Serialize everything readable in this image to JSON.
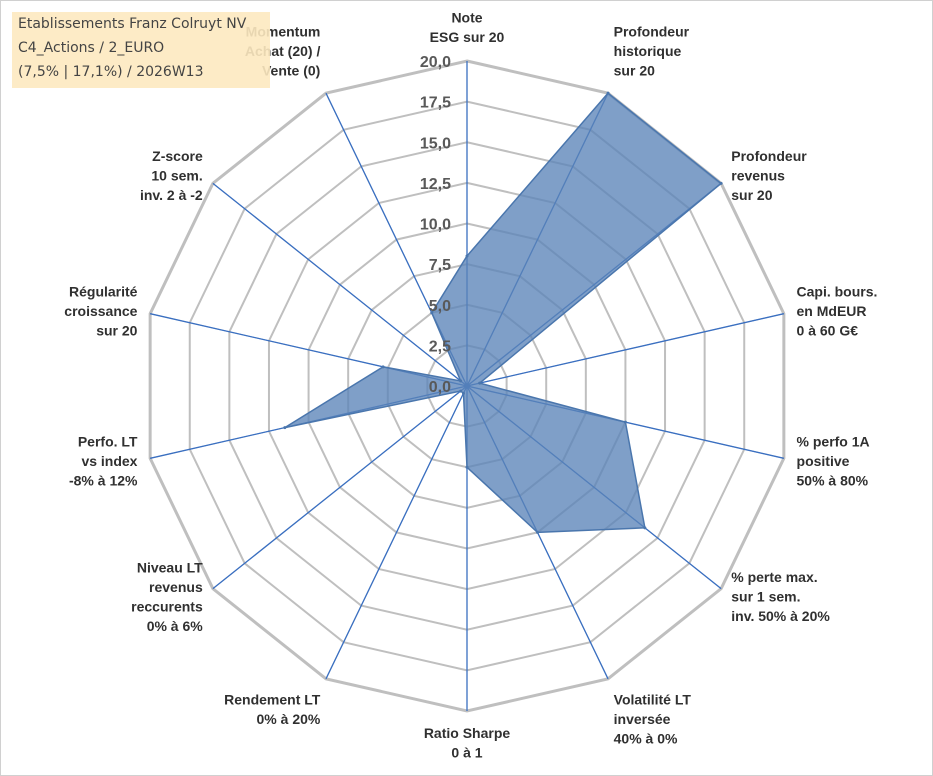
{
  "title_box": {
    "line1": "Etablissements Franz Colruyt NV",
    "line2": "C4_Actions / 2_EURO",
    "line3": "(7,5% | 17,1%) / 2026W13"
  },
  "chart_data": {
    "type": "radar",
    "rmin": 0,
    "rmax": 20,
    "ticks": [
      "0,0",
      "2,5",
      "5,0",
      "7,5",
      "10,0",
      "12,5",
      "15,0",
      "17,5",
      "20,0"
    ],
    "grid": true,
    "axes": [
      [
        "Note",
        "ESG sur 20"
      ],
      [
        "Profondeur",
        "historique",
        "sur 20"
      ],
      [
        "Profondeur",
        "revenus",
        "sur 20"
      ],
      [
        "Capi. bours.",
        "en MdEUR",
        "0 à 60 G€"
      ],
      [
        "% perfo 1A",
        "positive",
        "50% à 80%"
      ],
      [
        "% perte max.",
        "sur 1 sem.",
        "inv. 50% à 20%"
      ],
      [
        "Volatilité LT",
        "inversée",
        "40% à 0%"
      ],
      [
        "Ratio Sharpe",
        "0 à 1"
      ],
      [
        "Rendement LT",
        "0% à 20%"
      ],
      [
        "Niveau LT",
        "revenus",
        "reccurents",
        "0% à 6%"
      ],
      [
        "Perfo. LT",
        "vs index",
        "-8% à 12%"
      ],
      [
        "Régularité",
        "croissance",
        "sur 20"
      ],
      [
        "Z-score",
        "10 sem.",
        "inv. 2 à -2"
      ],
      [
        "Momentum",
        "Achat (20) /",
        "Vente (0)"
      ]
    ],
    "series": [
      {
        "values": [
          8.0,
          20.0,
          20.0,
          0.8,
          10.0,
          14.0,
          10.0,
          5.0,
          0.5,
          0.5,
          11.5,
          5.3,
          0.5,
          5.0
        ],
        "color": "#4a76ad"
      }
    ],
    "colors": {
      "fill": "#5b84b8",
      "stroke": "#4a76ad",
      "grid": "#bfbfbf",
      "axis": "#3a6fc0"
    }
  }
}
